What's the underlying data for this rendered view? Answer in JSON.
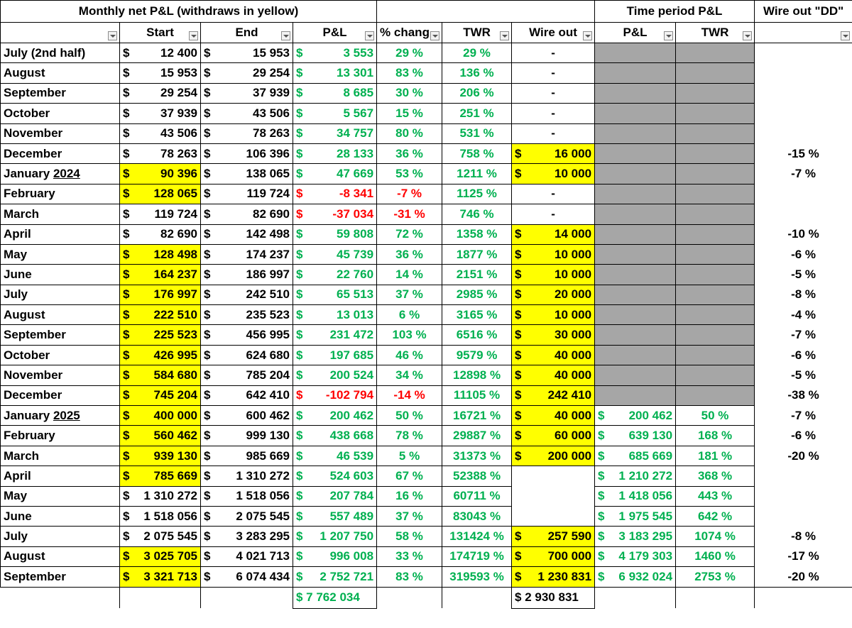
{
  "colors": {
    "highlight": "#ffff00",
    "gray": "#a6a6a6",
    "positive": "#00b050",
    "negative": "#ff0000"
  },
  "header": {
    "group_monthly": "Monthly net P&L (withdraws in yellow)",
    "group_time": "Time period P&L",
    "group_dd": "Wire out \"DD\"",
    "cols": [
      "Start",
      "End",
      "P&L",
      "% chang",
      "TWR",
      "Wire out",
      "P&L",
      "TWR"
    ]
  },
  "rows": [
    {
      "month": "July (2nd half)",
      "start": "12 400",
      "end": "15 953",
      "pl": "3 553",
      "pct": "29 %",
      "twr": "29 %",
      "wire": "-",
      "tp_pl": "",
      "tp_twr": "",
      "dd": "",
      "start_hl": false,
      "wire_hl": false,
      "neg": false,
      "gray": true
    },
    {
      "month": "August",
      "start": "15 953",
      "end": "29 254",
      "pl": "13 301",
      "pct": "83 %",
      "twr": "136 %",
      "wire": "-",
      "tp_pl": "",
      "tp_twr": "",
      "dd": "",
      "start_hl": false,
      "wire_hl": false,
      "neg": false,
      "gray": true
    },
    {
      "month": "September",
      "start": "29 254",
      "end": "37 939",
      "pl": "8 685",
      "pct": "30 %",
      "twr": "206 %",
      "wire": "-",
      "tp_pl": "",
      "tp_twr": "",
      "dd": "",
      "start_hl": false,
      "wire_hl": false,
      "neg": false,
      "gray": true
    },
    {
      "month": "October",
      "start": "37 939",
      "end": "43 506",
      "pl": "5 567",
      "pct": "15 %",
      "twr": "251 %",
      "wire": "-",
      "tp_pl": "",
      "tp_twr": "",
      "dd": "",
      "start_hl": false,
      "wire_hl": false,
      "neg": false,
      "gray": true
    },
    {
      "month": "November",
      "start": "43 506",
      "end": "78 263",
      "pl": "34 757",
      "pct": "80 %",
      "twr": "531 %",
      "wire": "-",
      "tp_pl": "",
      "tp_twr": "",
      "dd": "",
      "start_hl": false,
      "wire_hl": false,
      "neg": false,
      "gray": true
    },
    {
      "month": "December",
      "start": "78 263",
      "end": "106 396",
      "pl": "28 133",
      "pct": "36 %",
      "twr": "758 %",
      "wire": "16 000",
      "tp_pl": "",
      "tp_twr": "",
      "dd": "-15 %",
      "start_hl": false,
      "wire_hl": true,
      "neg": false,
      "gray": true
    },
    {
      "month": "January",
      "year": "2024",
      "start": "90 396",
      "end": "138 065",
      "pl": "47 669",
      "pct": "53 %",
      "twr": "1211 %",
      "wire": "10 000",
      "tp_pl": "",
      "tp_twr": "",
      "dd": "-7 %",
      "start_hl": true,
      "wire_hl": true,
      "neg": false,
      "gray": true
    },
    {
      "month": "February",
      "start": "128 065",
      "end": "119 724",
      "pl": "-8 341",
      "pct": "-7 %",
      "twr": "1125 %",
      "wire": "-",
      "tp_pl": "",
      "tp_twr": "",
      "dd": "",
      "start_hl": true,
      "wire_hl": false,
      "neg": true,
      "gray": true
    },
    {
      "month": "March",
      "start": "119 724",
      "end": "82 690",
      "pl": "-37 034",
      "pct": "-31 %",
      "twr": "746 %",
      "wire": "-",
      "tp_pl": "",
      "tp_twr": "",
      "dd": "",
      "start_hl": false,
      "wire_hl": false,
      "neg": true,
      "gray": true
    },
    {
      "month": "April",
      "start": "82 690",
      "end": "142 498",
      "pl": "59 808",
      "pct": "72 %",
      "twr": "1358 %",
      "wire": "14 000",
      "tp_pl": "",
      "tp_twr": "",
      "dd": "-10 %",
      "start_hl": false,
      "wire_hl": true,
      "neg": false,
      "gray": true
    },
    {
      "month": "May",
      "start": "128 498",
      "end": "174 237",
      "pl": "45 739",
      "pct": "36 %",
      "twr": "1877 %",
      "wire": "10 000",
      "tp_pl": "",
      "tp_twr": "",
      "dd": "-6 %",
      "start_hl": true,
      "wire_hl": true,
      "neg": false,
      "gray": true
    },
    {
      "month": "June",
      "start": "164 237",
      "end": "186 997",
      "pl": "22 760",
      "pct": "14 %",
      "twr": "2151 %",
      "wire": "10 000",
      "tp_pl": "",
      "tp_twr": "",
      "dd": "-5 %",
      "start_hl": true,
      "wire_hl": true,
      "neg": false,
      "gray": true
    },
    {
      "month": "July",
      "start": "176 997",
      "end": "242 510",
      "pl": "65 513",
      "pct": "37 %",
      "twr": "2985 %",
      "wire": "20 000",
      "tp_pl": "",
      "tp_twr": "",
      "dd": "-8 %",
      "start_hl": true,
      "wire_hl": true,
      "neg": false,
      "gray": true
    },
    {
      "month": "August",
      "start": "222 510",
      "end": "235 523",
      "pl": "13 013",
      "pct": "6 %",
      "twr": "3165 %",
      "wire": "10 000",
      "tp_pl": "",
      "tp_twr": "",
      "dd": "-4 %",
      "start_hl": true,
      "wire_hl": true,
      "neg": false,
      "gray": true
    },
    {
      "month": "September",
      "start": "225 523",
      "end": "456 995",
      "pl": "231 472",
      "pct": "103 %",
      "twr": "6516 %",
      "wire": "30 000",
      "tp_pl": "",
      "tp_twr": "",
      "dd": "-7 %",
      "start_hl": true,
      "wire_hl": true,
      "neg": false,
      "gray": true
    },
    {
      "month": "October",
      "start": "426 995",
      "end": "624 680",
      "pl": "197 685",
      "pct": "46 %",
      "twr": "9579 %",
      "wire": "40 000",
      "tp_pl": "",
      "tp_twr": "",
      "dd": "-6 %",
      "start_hl": true,
      "wire_hl": true,
      "neg": false,
      "gray": true
    },
    {
      "month": "November",
      "start": "584 680",
      "end": "785 204",
      "pl": "200 524",
      "pct": "34 %",
      "twr": "12898 %",
      "wire": "40 000",
      "tp_pl": "",
      "tp_twr": "",
      "dd": "-5 %",
      "start_hl": true,
      "wire_hl": true,
      "neg": false,
      "gray": true
    },
    {
      "month": "December",
      "start": "745 204",
      "end": "642 410",
      "pl": "-102 794",
      "pct": "-14 %",
      "twr": "11105 %",
      "wire": "242 410",
      "tp_pl": "",
      "tp_twr": "",
      "dd": "-38 %",
      "start_hl": true,
      "wire_hl": true,
      "neg": true,
      "gray": true
    },
    {
      "month": "January",
      "year": "2025",
      "start": "400 000",
      "end": "600 462",
      "pl": "200 462",
      "pct": "50 %",
      "twr": "16721 %",
      "wire": "40 000",
      "tp_pl": "200 462",
      "tp_twr": "50 %",
      "dd": "-7 %",
      "start_hl": true,
      "wire_hl": true,
      "neg": false,
      "gray": false
    },
    {
      "month": "February",
      "start": "560 462",
      "end": "999 130",
      "pl": "438 668",
      "pct": "78 %",
      "twr": "29887 %",
      "wire": "60 000",
      "tp_pl": "639 130",
      "tp_twr": "168 %",
      "dd": "-6 %",
      "start_hl": true,
      "wire_hl": true,
      "neg": false,
      "gray": false
    },
    {
      "month": "March",
      "start": "939 130",
      "end": "985 669",
      "pl": "46 539",
      "pct": "5 %",
      "twr": "31373 %",
      "wire": "200 000",
      "tp_pl": "685 669",
      "tp_twr": "181 %",
      "dd": "-20 %",
      "start_hl": true,
      "wire_hl": true,
      "neg": false,
      "gray": false
    },
    {
      "month": "April",
      "start": "785 669",
      "end": "1 310 272",
      "pl": "524 603",
      "pct": "67 %",
      "twr": "52388 %",
      "wire": "",
      "tp_pl": "1 210 272",
      "tp_twr": "368 %",
      "dd": "",
      "start_hl": true,
      "wire_hl": false,
      "neg": false,
      "gray": false
    },
    {
      "month": "May",
      "start": "1 310 272",
      "end": "1 518 056",
      "pl": "207 784",
      "pct": "16 %",
      "twr": "60711 %",
      "wire": "",
      "tp_pl": "1 418 056",
      "tp_twr": "443 %",
      "dd": "",
      "start_hl": false,
      "wire_hl": false,
      "neg": false,
      "gray": false
    },
    {
      "month": "June",
      "start": "1 518 056",
      "end": "2 075 545",
      "pl": "557 489",
      "pct": "37 %",
      "twr": "83043 %",
      "wire": "",
      "tp_pl": "1 975 545",
      "tp_twr": "642 %",
      "dd": "",
      "start_hl": false,
      "wire_hl": false,
      "neg": false,
      "gray": false
    },
    {
      "month": "July",
      "start": "2 075 545",
      "end": "3 283 295",
      "pl": "1 207 750",
      "pct": "58 %",
      "twr": "131424 %",
      "wire": "257 590",
      "tp_pl": "3 183 295",
      "tp_twr": "1074 %",
      "dd": "-8 %",
      "start_hl": false,
      "wire_hl": true,
      "neg": false,
      "gray": false
    },
    {
      "month": "August",
      "start": "3 025 705",
      "end": "4 021 713",
      "pl": "996 008",
      "pct": "33 %",
      "twr": "174719 %",
      "wire": "700 000",
      "tp_pl": "4 179 303",
      "tp_twr": "1460 %",
      "dd": "-17 %",
      "start_hl": true,
      "wire_hl": true,
      "neg": false,
      "gray": false
    },
    {
      "month": "September",
      "start": "3 321 713",
      "end": "6 074 434",
      "pl": "2 752 721",
      "pct": "83 %",
      "twr": "319593 %",
      "wire": "1 230 831",
      "tp_pl": "6 932 024",
      "tp_twr": "2753 %",
      "dd": "-20 %",
      "start_hl": true,
      "wire_hl": true,
      "neg": false,
      "gray": false
    }
  ],
  "totals": {
    "pl": "$ 7 762 034",
    "wire": "$ 2 930 831"
  }
}
